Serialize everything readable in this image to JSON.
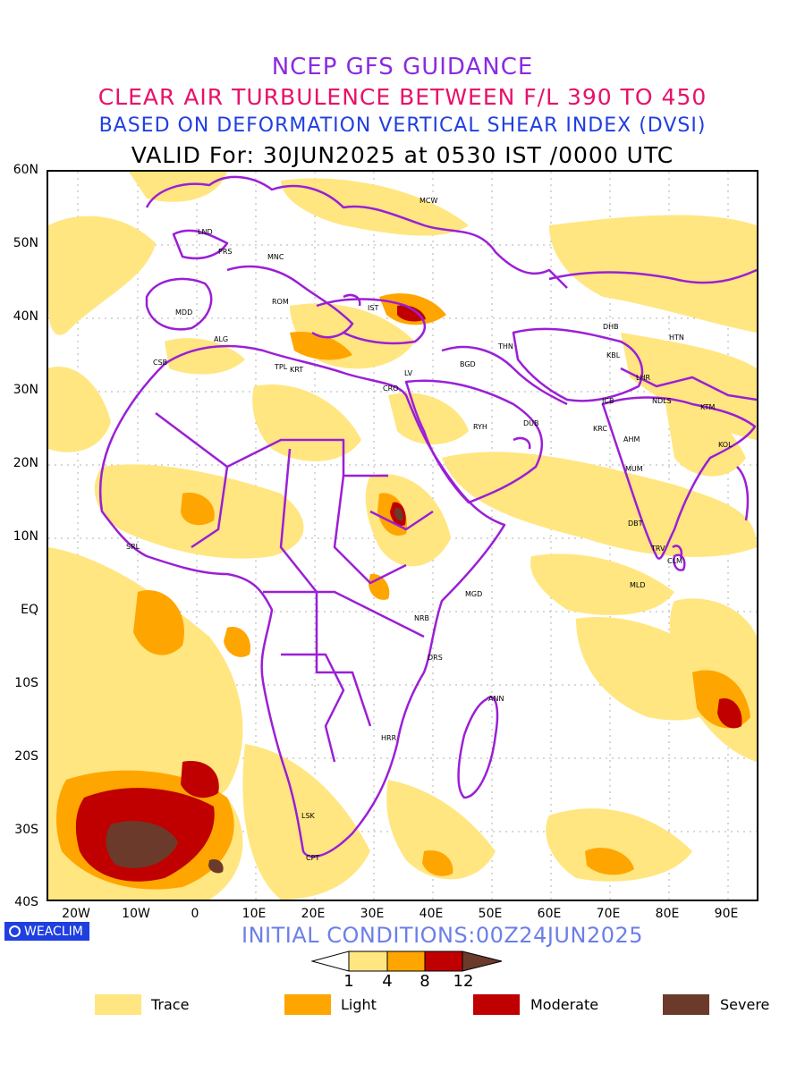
{
  "titles": {
    "line1": "NCEP GFS GUIDANCE",
    "line2": "CLEAR AIR TURBULENCE BETWEEN F/L 390 TO 450",
    "line3": "BASED ON DEFORMATION VERTICAL SHEAR INDEX (DVSI)",
    "line4": "VALID For: 30JUN2025 at 0530 IST /0000 UTC"
  },
  "lat_labels": [
    "60N",
    "50N",
    "40N",
    "30N",
    "20N",
    "10N",
    "EQ",
    "10S",
    "20S",
    "30S",
    "40S"
  ],
  "lon_labels": [
    "20W",
    "10W",
    "0",
    "10E",
    "20E",
    "30E",
    "40E",
    "50E",
    "60E",
    "70E",
    "80E",
    "90E"
  ],
  "branding": "WEACLIM",
  "initial_conditions": "INITIAL CONDITIONS:00Z24JUN2025",
  "colorbar": {
    "ticks": [
      "1",
      "4",
      "8",
      "12"
    ],
    "colors": [
      "#ffe680",
      "#ffa500",
      "#c00000",
      "#6b3a2a"
    ]
  },
  "legend": [
    {
      "label": "Trace",
      "color": "#ffe680"
    },
    {
      "label": "Light",
      "color": "#ffa500"
    },
    {
      "label": "Moderate",
      "color": "#c00000"
    },
    {
      "label": "Severe",
      "color": "#6b3a2a"
    }
  ],
  "stations": [
    "MCW",
    "LND",
    "PRS",
    "MNC",
    "MDD",
    "ROM",
    "IST",
    "ALG",
    "CSB",
    "TPL",
    "KRT",
    "LV",
    "CRO",
    "BGD",
    "THN",
    "DHB",
    "HTN",
    "KBL",
    "LHR",
    "JCB",
    "NDLS",
    "KTM",
    "RYH",
    "DUB",
    "KRC",
    "AHM",
    "KOL",
    "MUM",
    "SRL",
    "DBT",
    "TRV",
    "CLM",
    "MLD",
    "MGD",
    "NRB",
    "DRS",
    "ANN",
    "HRR",
    "LSK",
    "CPT"
  ],
  "colors": {
    "boundary": "#9b1fd6",
    "trace": "#ffe680",
    "light": "#ffa500",
    "moderate": "#c00000",
    "severe": "#6b3a2a"
  }
}
